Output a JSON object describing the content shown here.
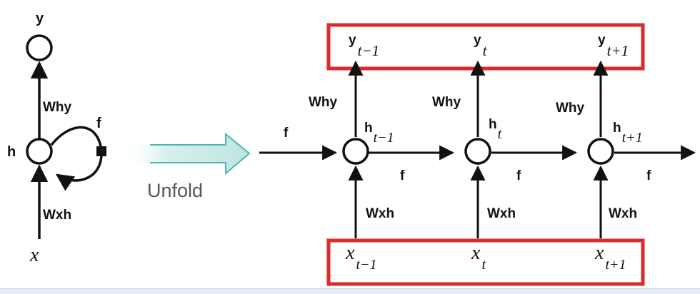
{
  "folded": {
    "y_label": "y",
    "h_label": "h",
    "x_label": "x",
    "why_label": "Why",
    "wxh_label": "Wxh",
    "f_label": "f"
  },
  "unfold_label": "Unfold",
  "unfolded": {
    "input_f_label": "f",
    "steps": [
      {
        "y": "y",
        "y_sub": "t−1",
        "h": "h",
        "h_sub": "t−1",
        "x": "x",
        "x_sub": "t−1",
        "why": "Why",
        "wxh": "Wxh",
        "f": "f"
      },
      {
        "y": "y",
        "y_sub": "t",
        "h": "h",
        "h_sub": "t",
        "x": "x",
        "x_sub": "t",
        "why": "Why",
        "wxh": "Wxh",
        "f": "f"
      },
      {
        "y": "y",
        "y_sub": "t+1",
        "h": "h",
        "h_sub": "t+1",
        "x": "x",
        "x_sub": "t+1",
        "why": "Why",
        "wxh": "Wxh",
        "f": "f"
      }
    ]
  },
  "colors": {
    "highlight_box": "#d92b2b",
    "unfold_arrow_fill": "#bfe6e2",
    "unfold_arrow_stroke": "#4fb6ad",
    "ink": "#111111"
  }
}
